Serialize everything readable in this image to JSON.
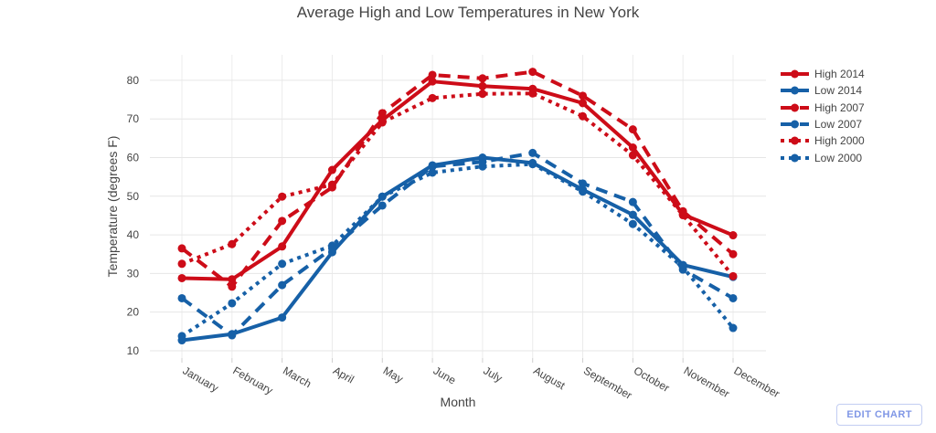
{
  "chart_data": {
    "type": "line",
    "title": "Average High and Low Temperatures in New York",
    "xlabel": "Month",
    "ylabel": "Temperature (degrees F)",
    "categories": [
      "January",
      "February",
      "March",
      "April",
      "May",
      "June",
      "July",
      "August",
      "September",
      "October",
      "November",
      "December"
    ],
    "y_ticks": [
      10,
      20,
      30,
      40,
      50,
      60,
      70,
      80
    ],
    "ylim": [
      8.1,
      86.6
    ],
    "grid": true,
    "legend_position": "right",
    "series": [
      {
        "name": "High 2014",
        "color": "#CD0C18",
        "dash": "solid",
        "values": [
          28.8,
          28.5,
          37.0,
          56.8,
          69.7,
          79.7,
          78.5,
          77.8,
          74.1,
          62.6,
          45.3,
          39.9
        ]
      },
      {
        "name": "Low 2014",
        "color": "#1660A7",
        "dash": "solid",
        "values": [
          12.7,
          14.3,
          18.6,
          35.5,
          49.9,
          58.0,
          60.0,
          58.6,
          51.7,
          45.2,
          32.2,
          29.1
        ]
      },
      {
        "name": "High 2007",
        "color": "#CD0C18",
        "dash": "dash",
        "values": [
          36.5,
          26.6,
          43.6,
          52.3,
          71.5,
          81.4,
          80.5,
          82.2,
          76.0,
          67.3,
          46.1,
          35.0
        ]
      },
      {
        "name": "Low 2007",
        "color": "#1660A7",
        "dash": "dash",
        "values": [
          23.6,
          14.0,
          27.0,
          36.5,
          47.6,
          57.7,
          58.9,
          61.2,
          53.3,
          48.5,
          31.0,
          23.6
        ]
      },
      {
        "name": "High 2000",
        "color": "#CD0C18",
        "dash": "dot",
        "values": [
          32.5,
          37.6,
          49.9,
          53.0,
          69.1,
          75.4,
          76.5,
          76.6,
          70.7,
          60.6,
          45.1,
          29.3
        ]
      },
      {
        "name": "Low 2000",
        "color": "#1660A7",
        "dash": "dot",
        "values": [
          13.8,
          22.3,
          32.5,
          37.2,
          49.9,
          56.1,
          57.7,
          58.3,
          51.2,
          42.8,
          31.6,
          15.9
        ]
      }
    ]
  },
  "controls": {
    "edit_chart_label": "EDIT CHART"
  },
  "colors": {
    "title": "#444444",
    "tick_label": "#444444",
    "grid_h": "#e6e6e6",
    "grid_v": "#ececec",
    "tick_mark": "#d0d0d0",
    "edit_chart_text": "#8097e6",
    "edit_chart_border": "#c2cdf2"
  }
}
